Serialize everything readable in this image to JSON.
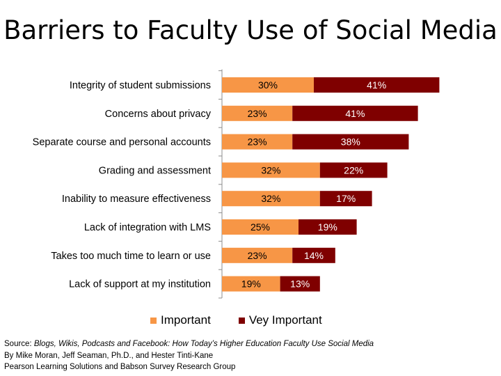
{
  "title": "Barriers to Faculty Use of Social Media",
  "colors": {
    "important": "#F79646",
    "very_important": "#7F0000"
  },
  "chart_data": {
    "type": "bar",
    "orientation": "horizontal",
    "stacked": true,
    "categories": [
      "Integrity of student submissions",
      "Concerns about privacy",
      "Separate course and personal accounts",
      "Grading and assessment",
      "Inability to measure effectiveness",
      "Lack of integration with LMS",
      "Takes too much time to learn or use",
      "Lack of support at my institution"
    ],
    "series": [
      {
        "name": "Important",
        "values": [
          30,
          23,
          23,
          32,
          32,
          25,
          23,
          19
        ],
        "labels": [
          "30%",
          "23%",
          "23%",
          "32%",
          "32%",
          "25%",
          "23%",
          "19%"
        ]
      },
      {
        "name": "Vey Important",
        "values": [
          41,
          41,
          38,
          22,
          17,
          19,
          14,
          13
        ],
        "labels": [
          "41%",
          "41%",
          "38%",
          "22%",
          "17%",
          "19%",
          "14%",
          "13%"
        ]
      }
    ],
    "xlim": [
      0,
      100
    ],
    "grid": false,
    "legend_position": "bottom"
  },
  "source": {
    "prefix": "Source: ",
    "work": "Blogs, Wikis, Podcasts and Facebook: How Today’s Higher Education Faculty Use Social Media",
    "authors": "By Mike Moran, Jeff Seaman, Ph.D., and Hester Tinti-Kane",
    "publisher": "Pearson Learning Solutions and Babson Survey Research Group"
  }
}
